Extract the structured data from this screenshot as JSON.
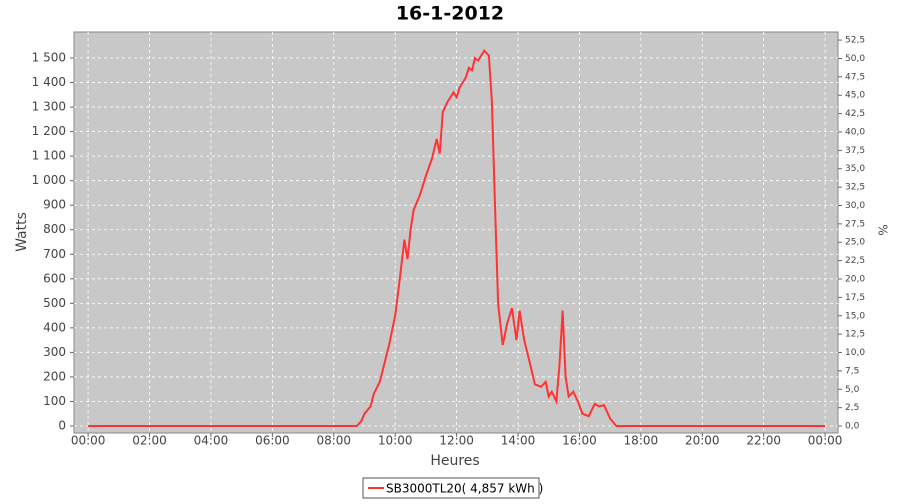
{
  "chart_data": {
    "type": "line",
    "title": "16-1-2012",
    "xlabel": "Heures",
    "ylabel": "Watts",
    "y2label": "%",
    "xlim": [
      -0.46,
      24.42
    ],
    "xticks": [
      {
        "value": 0,
        "label": "00:00"
      },
      {
        "value": 2,
        "label": "02:00"
      },
      {
        "value": 4,
        "label": "04:00"
      },
      {
        "value": 6,
        "label": "06:00"
      },
      {
        "value": 8,
        "label": "08:00"
      },
      {
        "value": 10,
        "label": "10:00"
      },
      {
        "value": 12,
        "label": "12:00"
      },
      {
        "value": 14,
        "label": "14:00"
      },
      {
        "value": 16,
        "label": "16:00"
      },
      {
        "value": 18,
        "label": "18:00"
      },
      {
        "value": 20,
        "label": "20:00"
      },
      {
        "value": 22,
        "label": "22:00"
      },
      {
        "value": 24,
        "label": "00:00"
      }
    ],
    "ylim": [
      -28.5,
      1606
    ],
    "yticks": [
      0,
      100,
      200,
      300,
      400,
      500,
      600,
      700,
      800,
      900,
      {
        "value": 1000,
        "label": "1 000"
      },
      {
        "value": 1100,
        "label": "1 100"
      },
      {
        "value": 1200,
        "label": "1 200"
      },
      {
        "value": 1300,
        "label": "1 300"
      },
      {
        "value": 1400,
        "label": "1 400"
      },
      {
        "value": 1500,
        "label": "1 500"
      }
    ],
    "y2lim": [
      -0.95,
      53.6
    ],
    "y2ticks": [
      {
        "value": 0,
        "label": "0,0"
      },
      {
        "value": 2.5,
        "label": "2,5"
      },
      {
        "value": 5,
        "label": "5,0"
      },
      {
        "value": 7.5,
        "label": "7,5"
      },
      {
        "value": 10,
        "label": "10,0"
      },
      {
        "value": 12.5,
        "label": "12,5"
      },
      {
        "value": 15,
        "label": "15,0"
      },
      {
        "value": 17.5,
        "label": "17,5"
      },
      {
        "value": 20,
        "label": "20,0"
      },
      {
        "value": 22.5,
        "label": "22,5"
      },
      {
        "value": 25,
        "label": "25,0"
      },
      {
        "value": 27.5,
        "label": "27,5"
      },
      {
        "value": 30,
        "label": "30,0"
      },
      {
        "value": 32.5,
        "label": "32,5"
      },
      {
        "value": 35,
        "label": "35,0"
      },
      {
        "value": 37.5,
        "label": "37,5"
      },
      {
        "value": 40,
        "label": "40,0"
      },
      {
        "value": 42.5,
        "label": "42,5"
      },
      {
        "value": 45,
        "label": "45,0"
      },
      {
        "value": 47.5,
        "label": "47,5"
      },
      {
        "value": 50,
        "label": "50,0"
      },
      {
        "value": 52.5,
        "label": "52,5"
      }
    ],
    "grid": true,
    "x": [
      0,
      8.75,
      8.9,
      9.0,
      9.2,
      9.3,
      9.5,
      9.6,
      9.8,
      10.0,
      10.15,
      10.3,
      10.4,
      10.5,
      10.6,
      10.8,
      11.0,
      11.2,
      11.35,
      11.45,
      11.55,
      11.7,
      11.9,
      12.0,
      12.1,
      12.3,
      12.4,
      12.5,
      12.6,
      12.7,
      12.9,
      13.05,
      13.15,
      13.25,
      13.35,
      13.5,
      13.65,
      13.8,
      13.95,
      14.05,
      14.2,
      14.4,
      14.55,
      14.75,
      14.9,
      15.0,
      15.1,
      15.25,
      15.35,
      15.45,
      15.55,
      15.65,
      15.8,
      15.95,
      16.1,
      16.3,
      16.5,
      16.65,
      16.8,
      17.0,
      17.2,
      24
    ],
    "series": [
      {
        "name": "SB3000TL20( 4,857 kWh )",
        "color": "#ff3333",
        "values": [
          0,
          0,
          20,
          50,
          80,
          130,
          180,
          230,
          330,
          450,
          600,
          760,
          680,
          800,
          880,
          940,
          1020,
          1090,
          1170,
          1110,
          1280,
          1320,
          1360,
          1340,
          1380,
          1420,
          1460,
          1450,
          1500,
          1490,
          1530,
          1510,
          1320,
          900,
          500,
          330,
          420,
          480,
          350,
          470,
          350,
          250,
          170,
          160,
          180,
          120,
          140,
          100,
          250,
          470,
          200,
          120,
          140,
          100,
          50,
          40,
          90,
          80,
          85,
          30,
          0,
          0
        ]
      }
    ]
  }
}
